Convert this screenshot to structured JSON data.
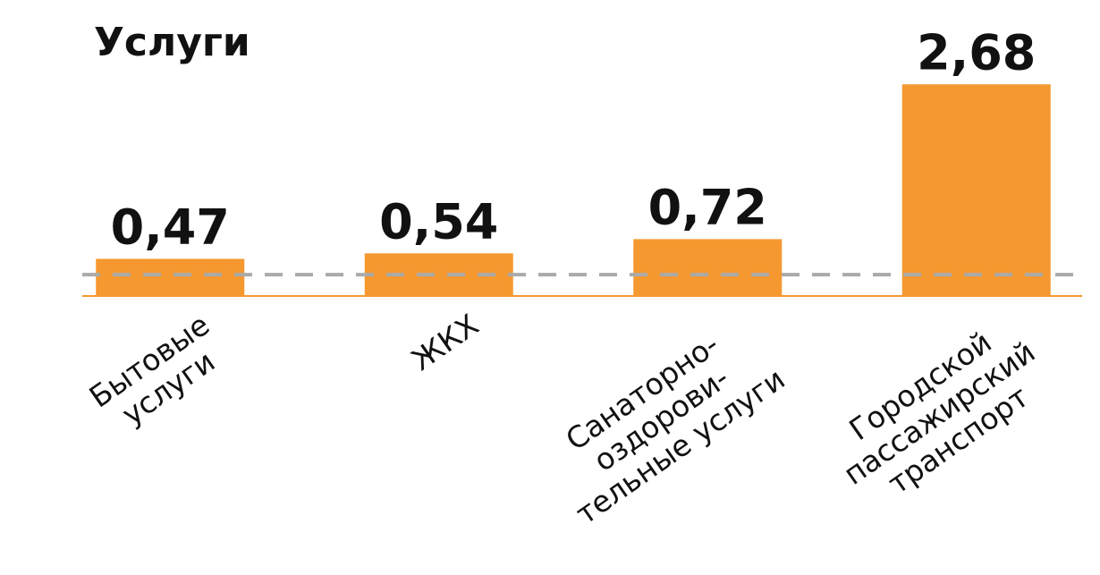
{
  "chart_data": {
    "type": "bar",
    "title": "Услуги",
    "categories": [
      "Бытовые\nуслуги",
      "ЖКХ",
      "Санаторно-\nоздорови-\nтельные услуги",
      "Городской\nпассажирский\nтранспорт"
    ],
    "values": [
      0.47,
      0.54,
      0.72,
      2.68
    ],
    "value_labels": [
      "0,47",
      "0,54",
      "0,72",
      "2,68"
    ],
    "color": "#f5982f",
    "ylim": [
      0,
      3
    ],
    "reference_line": 0.27
  }
}
